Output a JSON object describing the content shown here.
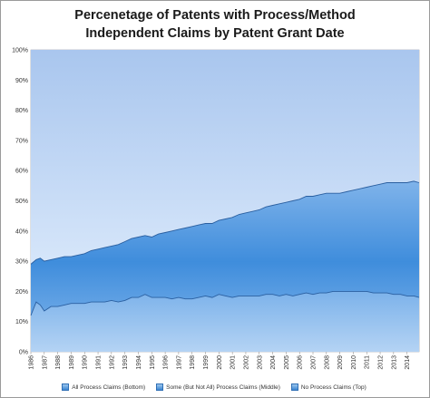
{
  "chart_data": {
    "type": "area",
    "stacked": true,
    "title_lines": [
      "Percenetage of Patents with Process/Method",
      "Independent Claims by Patent Grant Date"
    ],
    "xlabel": "",
    "ylabel": "",
    "x_range": [
      1986,
      2014.9
    ],
    "ylim": [
      0,
      100
    ],
    "y_ticks": [
      "0%",
      "10%",
      "20%",
      "30%",
      "40%",
      "50%",
      "60%",
      "70%",
      "80%",
      "90%",
      "100%"
    ],
    "x_ticks": [
      "1986",
      "1987",
      "1988",
      "1989",
      "1990",
      "1991",
      "1992",
      "1993",
      "1994",
      "1995",
      "1996",
      "1997",
      "1998",
      "1999",
      "2000",
      "2001",
      "2002",
      "2003",
      "2004",
      "2005",
      "2006",
      "2007",
      "2008",
      "2009",
      "2010",
      "2011",
      "2012",
      "2013",
      "2014"
    ],
    "x": [
      1986.0,
      1986.4,
      1986.7,
      1987.0,
      1987.5,
      1988.0,
      1988.5,
      1989.0,
      1989.5,
      1990.0,
      1990.5,
      1991.0,
      1991.5,
      1992.0,
      1992.5,
      1993.0,
      1993.5,
      1994.0,
      1994.5,
      1995.0,
      1995.5,
      1996.0,
      1996.5,
      1997.0,
      1997.5,
      1998.0,
      1998.5,
      1999.0,
      1999.5,
      2000.0,
      2000.5,
      2001.0,
      2001.5,
      2002.0,
      2002.5,
      2003.0,
      2003.5,
      2004.0,
      2004.5,
      2005.0,
      2005.5,
      2006.0,
      2006.5,
      2007.0,
      2007.5,
      2008.0,
      2008.5,
      2009.0,
      2009.5,
      2010.0,
      2010.5,
      2011.0,
      2011.5,
      2012.0,
      2012.5,
      2013.0,
      2013.5,
      2014.0,
      2014.5,
      2014.9
    ],
    "series": [
      {
        "name": "All Process Claims  (Bottom)",
        "values": [
          12.0,
          16.5,
          15.5,
          13.5,
          15.0,
          15.0,
          15.5,
          16.0,
          16.0,
          16.0,
          16.5,
          16.5,
          16.5,
          17.0,
          16.5,
          17.0,
          18.0,
          18.0,
          19.0,
          18.0,
          18.0,
          18.0,
          17.5,
          18.0,
          17.5,
          17.5,
          18.0,
          18.5,
          18.0,
          19.0,
          18.5,
          18.0,
          18.5,
          18.5,
          18.5,
          18.5,
          19.0,
          19.0,
          18.5,
          19.0,
          18.5,
          19.0,
          19.5,
          19.0,
          19.5,
          19.5,
          20.0,
          20.0,
          20.0,
          20.0,
          20.0,
          20.0,
          19.5,
          19.5,
          19.5,
          19.0,
          19.0,
          18.5,
          18.5,
          18.0
        ]
      },
      {
        "name": "Some (But Not All) Process Claims  (Middle)",
        "values": [
          17.0,
          14.0,
          15.5,
          16.5,
          15.5,
          16.0,
          16.0,
          15.5,
          16.0,
          16.5,
          17.0,
          17.5,
          18.0,
          18.0,
          19.0,
          19.5,
          19.5,
          20.0,
          19.5,
          20.0,
          21.0,
          21.5,
          22.5,
          22.5,
          23.5,
          24.0,
          24.0,
          24.0,
          24.5,
          24.5,
          25.5,
          26.5,
          27.0,
          27.5,
          28.0,
          28.5,
          29.0,
          29.5,
          30.5,
          30.5,
          31.5,
          31.5,
          32.0,
          32.5,
          32.5,
          33.0,
          32.5,
          32.5,
          33.0,
          33.5,
          34.0,
          34.5,
          35.5,
          36.0,
          36.5,
          37.0,
          37.0,
          37.5,
          38.0,
          38.0
        ]
      },
      {
        "name": "No Process Claims (Top)",
        "values": [
          71.0,
          69.5,
          69.0,
          70.0,
          69.5,
          69.0,
          68.5,
          68.5,
          68.0,
          67.5,
          66.5,
          66.0,
          65.5,
          65.0,
          64.5,
          63.5,
          62.5,
          62.0,
          61.5,
          62.0,
          61.0,
          60.5,
          60.0,
          59.5,
          59.0,
          58.5,
          58.0,
          57.5,
          57.5,
          56.5,
          56.0,
          55.5,
          54.5,
          54.0,
          53.5,
          53.0,
          52.0,
          51.5,
          51.0,
          50.5,
          50.0,
          49.5,
          48.5,
          48.5,
          48.0,
          47.5,
          47.5,
          47.5,
          47.0,
          46.5,
          46.0,
          45.5,
          45.0,
          44.5,
          44.0,
          44.0,
          44.0,
          44.0,
          43.5,
          44.0
        ]
      }
    ],
    "grid": true,
    "legend_position": "bottom",
    "colors": {
      "bottom_band": "#5b9be0",
      "middle_band": "#2e7ed6",
      "top_band": "#b3cdf0",
      "band_line": "#2a5fa0",
      "gridline": "#c8c8d8"
    }
  }
}
